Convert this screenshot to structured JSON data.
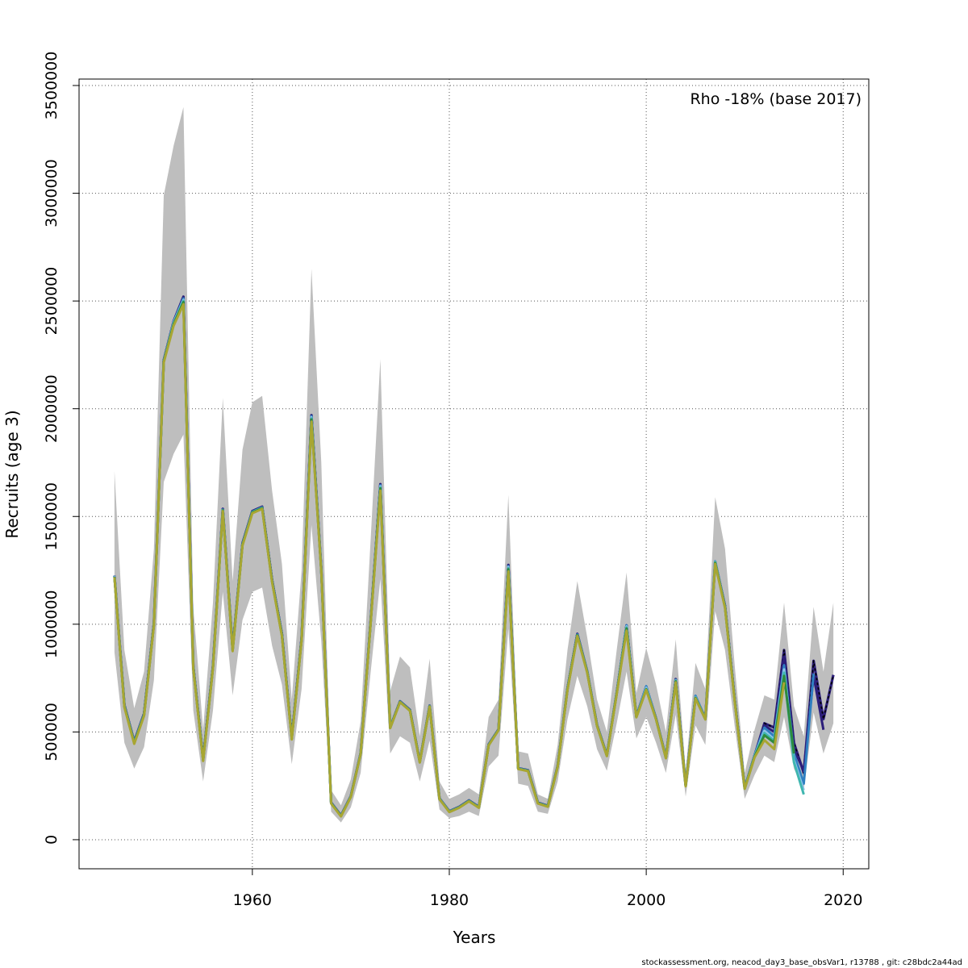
{
  "chart_data": {
    "type": "line",
    "annotation": "Rho -18% (base 2017)",
    "xlabel": "Years",
    "ylabel": "Recruits (age 3)",
    "footer": "stockassessment.org, neacod_day3_base_obsVar1, r13788 , git: c28bdc2a44ad",
    "xlim": [
      1942.4,
      2022.6
    ],
    "ylim": [
      -135000,
      3530000
    ],
    "x_ticks": [
      1960,
      1980,
      2000,
      2020
    ],
    "y_ticks": [
      0,
      500000,
      1000000,
      1500000,
      2000000,
      2500000,
      3000000,
      3500000
    ],
    "x_tick_labels": [
      "1960",
      "1980",
      "2000",
      "2020"
    ],
    "y_tick_labels": [
      "0",
      "500000",
      "1000000",
      "1500000",
      "2000000",
      "2500000",
      "3000000",
      "3500000"
    ],
    "grid": true,
    "band_color": "#bebebe",
    "years": [
      1946,
      1947,
      1948,
      1949,
      1950,
      1951,
      1952,
      1953,
      1954,
      1955,
      1956,
      1957,
      1958,
      1959,
      1960,
      1961,
      1962,
      1963,
      1964,
      1965,
      1966,
      1967,
      1968,
      1969,
      1970,
      1971,
      1972,
      1973,
      1974,
      1975,
      1976,
      1977,
      1978,
      1979,
      1980,
      1981,
      1982,
      1983,
      1984,
      1985,
      1986,
      1987,
      1988,
      1989,
      1990,
      1991,
      1992,
      1993,
      1994,
      1995,
      1996,
      1997,
      1998,
      1999,
      2000,
      2001,
      2002,
      2003,
      2004,
      2005,
      2006,
      2007,
      2008,
      2009,
      2010,
      2011,
      2012,
      2013,
      2014,
      2015,
      2016,
      2017,
      2018,
      2019
    ],
    "estimate": [
      1220000,
      620000,
      460000,
      580000,
      1000000,
      2220000,
      2400000,
      2510000,
      800000,
      370000,
      800000,
      1530000,
      880000,
      1370000,
      1520000,
      1540000,
      1200000,
      950000,
      470000,
      930000,
      1960000,
      1250000,
      170000,
      110000,
      200000,
      400000,
      1000000,
      1640000,
      520000,
      640000,
      600000,
      360000,
      620000,
      190000,
      130000,
      150000,
      180000,
      150000,
      440000,
      510000,
      1260000,
      330000,
      320000,
      170000,
      155000,
      340000,
      700000,
      950000,
      780000,
      530000,
      390000,
      680000,
      990000,
      570000,
      700000,
      560000,
      380000,
      740000,
      250000,
      660000,
      560000,
      1290000,
      1080000,
      640000,
      240000,
      380000,
      480000,
      440000,
      740000,
      430000,
      320000,
      830000,
      560000,
      760000
    ],
    "upper": [
      1710000,
      880000,
      610000,
      780000,
      1350000,
      2990000,
      3220000,
      3400000,
      1080000,
      510000,
      1100000,
      2050000,
      1200000,
      1810000,
      2030000,
      2060000,
      1620000,
      1280000,
      650000,
      1250000,
      2650000,
      1750000,
      230000,
      160000,
      280000,
      550000,
      1380000,
      2230000,
      690000,
      850000,
      800000,
      480000,
      840000,
      270000,
      190000,
      210000,
      240000,
      210000,
      570000,
      650000,
      1600000,
      410000,
      400000,
      210000,
      190000,
      440000,
      880000,
      1200000,
      940000,
      650000,
      500000,
      880000,
      1240000,
      680000,
      890000,
      720000,
      500000,
      930000,
      320000,
      820000,
      700000,
      1590000,
      1350000,
      800000,
      310000,
      510000,
      670000,
      650000,
      1100000,
      620000,
      480000,
      1080000,
      780000,
      1100000
    ],
    "lower": [
      870000,
      450000,
      330000,
      430000,
      740000,
      1660000,
      1790000,
      1880000,
      600000,
      270000,
      600000,
      1150000,
      670000,
      1020000,
      1150000,
      1170000,
      900000,
      720000,
      350000,
      700000,
      1460000,
      920000,
      130000,
      80000,
      150000,
      310000,
      770000,
      1210000,
      400000,
      480000,
      450000,
      270000,
      460000,
      140000,
      100000,
      110000,
      130000,
      110000,
      340000,
      390000,
      980000,
      260000,
      250000,
      130000,
      120000,
      270000,
      560000,
      760000,
      620000,
      420000,
      320000,
      540000,
      780000,
      470000,
      570000,
      450000,
      310000,
      580000,
      200000,
      530000,
      440000,
      1060000,
      880000,
      520000,
      190000,
      300000,
      390000,
      360000,
      570000,
      330000,
      230000,
      590000,
      400000,
      540000
    ],
    "series": [
      {
        "color": "#000000",
        "dash": true,
        "end": 2019,
        "values": [
          1225000,
          625000,
          455000,
          585000,
          1005000,
          2225000,
          2405000,
          2520000,
          805000,
          375000,
          805000,
          1535000,
          885000,
          1375000,
          1525000,
          1545000,
          1205000,
          955000,
          475000,
          935000,
          1970000,
          1255000,
          172000,
          112000,
          202000,
          402000,
          1005000,
          1650000,
          522000,
          642000,
          602000,
          362000,
          622000,
          192000,
          132000,
          152000,
          182000,
          152000,
          442000,
          512000,
          1275000,
          332000,
          322000,
          172000,
          157000,
          342000,
          702000,
          955000,
          782000,
          532000,
          392000,
          682000,
          995000,
          572000,
          710000,
          562000,
          382000,
          745000,
          252000,
          665000,
          562000,
          1290000,
          1085000,
          645000,
          240000,
          390000,
          540000,
          520000,
          880000,
          450000,
          310000,
          830000,
          560000,
          765000
        ]
      },
      {
        "color": "#2c1e7a",
        "dash": false,
        "end": 2018,
        "values": [
          1225000,
          625000,
          455000,
          585000,
          1005000,
          2225000,
          2405000,
          2518000,
          805000,
          375000,
          805000,
          1535000,
          885000,
          1375000,
          1525000,
          1545000,
          1205000,
          955000,
          475000,
          935000,
          1968000,
          1255000,
          172000,
          112000,
          202000,
          402000,
          1005000,
          1648000,
          522000,
          642000,
          602000,
          362000,
          622000,
          192000,
          132000,
          152000,
          182000,
          152000,
          442000,
          512000,
          1272000,
          332000,
          322000,
          172000,
          157000,
          342000,
          702000,
          955000,
          782000,
          532000,
          392000,
          682000,
          993000,
          572000,
          708000,
          562000,
          382000,
          745000,
          252000,
          665000,
          562000,
          1290000,
          1085000,
          645000,
          240000,
          392000,
          530000,
          500000,
          850000,
          420000,
          320000,
          760000,
          510000
        ]
      },
      {
        "color": "#2f7fc1",
        "dash": false,
        "end": 2017,
        "values": [
          1225000,
          622000,
          452000,
          582000,
          1002000,
          2222000,
          2402000,
          2512000,
          802000,
          372000,
          802000,
          1532000,
          882000,
          1372000,
          1522000,
          1542000,
          1202000,
          952000,
          472000,
          932000,
          1965000,
          1252000,
          171000,
          111000,
          201000,
          401000,
          1002000,
          1645000,
          521000,
          641000,
          601000,
          361000,
          621000,
          191000,
          131000,
          151000,
          181000,
          151000,
          441000,
          511000,
          1270000,
          331000,
          321000,
          171000,
          156000,
          341000,
          701000,
          952000,
          781000,
          531000,
          391000,
          681000,
          995000,
          571000,
          712000,
          561000,
          381000,
          742000,
          251000,
          668000,
          561000,
          1292000,
          1082000,
          642000,
          240000,
          392000,
          520000,
          480000,
          810000,
          400000,
          260000,
          770000
        ]
      },
      {
        "color": "#8fc4ea",
        "dash": false,
        "end": 2016,
        "values": [
          1222000,
          620000,
          450000,
          580000,
          1000000,
          2220000,
          2400000,
          2505000,
          800000,
          370000,
          800000,
          1530000,
          880000,
          1370000,
          1520000,
          1540000,
          1200000,
          950000,
          470000,
          930000,
          1960000,
          1250000,
          170000,
          110000,
          200000,
          400000,
          1000000,
          1640000,
          520000,
          640000,
          600000,
          360000,
          620000,
          190000,
          130000,
          150000,
          180000,
          150000,
          440000,
          510000,
          1265000,
          330000,
          320000,
          170000,
          155000,
          340000,
          700000,
          950000,
          780000,
          530000,
          390000,
          680000,
          990000,
          570000,
          705000,
          560000,
          380000,
          740000,
          250000,
          662000,
          560000,
          1290000,
          1080000,
          640000,
          238000,
          388000,
          505000,
          465000,
          790000,
          370000,
          230000
        ]
      },
      {
        "color": "#3fb6b0",
        "dash": false,
        "end": 2016,
        "values": [
          1220000,
          620000,
          450000,
          580000,
          1000000,
          2220000,
          2395000,
          2500000,
          800000,
          370000,
          800000,
          1530000,
          880000,
          1370000,
          1520000,
          1540000,
          1200000,
          950000,
          470000,
          930000,
          1955000,
          1250000,
          170000,
          110000,
          200000,
          400000,
          1000000,
          1635000,
          520000,
          640000,
          600000,
          360000,
          620000,
          190000,
          130000,
          150000,
          180000,
          150000,
          440000,
          510000,
          1260000,
          330000,
          320000,
          170000,
          155000,
          340000,
          700000,
          950000,
          780000,
          530000,
          390000,
          680000,
          985000,
          570000,
          700000,
          560000,
          380000,
          738000,
          250000,
          660000,
          560000,
          1288000,
          1080000,
          640000,
          238000,
          386000,
          495000,
          458000,
          775000,
          360000,
          210000
        ]
      },
      {
        "color": "#2e8b3e",
        "dash": false,
        "end": 2015,
        "values": [
          1220000,
          618000,
          448000,
          578000,
          998000,
          2218000,
          2392000,
          2495000,
          798000,
          368000,
          798000,
          1528000,
          878000,
          1368000,
          1518000,
          1538000,
          1198000,
          948000,
          468000,
          928000,
          1950000,
          1248000,
          169000,
          109000,
          199000,
          399000,
          998000,
          1630000,
          519000,
          639000,
          599000,
          359000,
          619000,
          189000,
          129000,
          149000,
          179000,
          149000,
          439000,
          509000,
          1255000,
          329000,
          319000,
          169000,
          154000,
          339000,
          698000,
          948000,
          778000,
          529000,
          389000,
          678000,
          980000,
          569000,
          698000,
          559000,
          379000,
          735000,
          249000,
          658000,
          559000,
          1285000,
          1078000,
          638000,
          237000,
          385000,
          485000,
          450000,
          760000,
          400000
        ]
      },
      {
        "color": "#a8a632",
        "dash": false,
        "end": 2014,
        "values": [
          1218000,
          615000,
          445000,
          575000,
          995000,
          2215000,
          2385000,
          2485000,
          795000,
          365000,
          795000,
          1525000,
          875000,
          1365000,
          1515000,
          1535000,
          1195000,
          945000,
          465000,
          925000,
          1940000,
          1245000,
          168000,
          108000,
          198000,
          398000,
          995000,
          1620000,
          518000,
          638000,
          598000,
          358000,
          618000,
          188000,
          128000,
          148000,
          178000,
          148000,
          438000,
          508000,
          1245000,
          328000,
          318000,
          168000,
          153000,
          338000,
          695000,
          945000,
          775000,
          528000,
          388000,
          675000,
          970000,
          568000,
          695000,
          558000,
          378000,
          730000,
          248000,
          655000,
          558000,
          1280000,
          1075000,
          635000,
          236000,
          382000,
          462000,
          420000,
          730000
        ]
      }
    ]
  }
}
